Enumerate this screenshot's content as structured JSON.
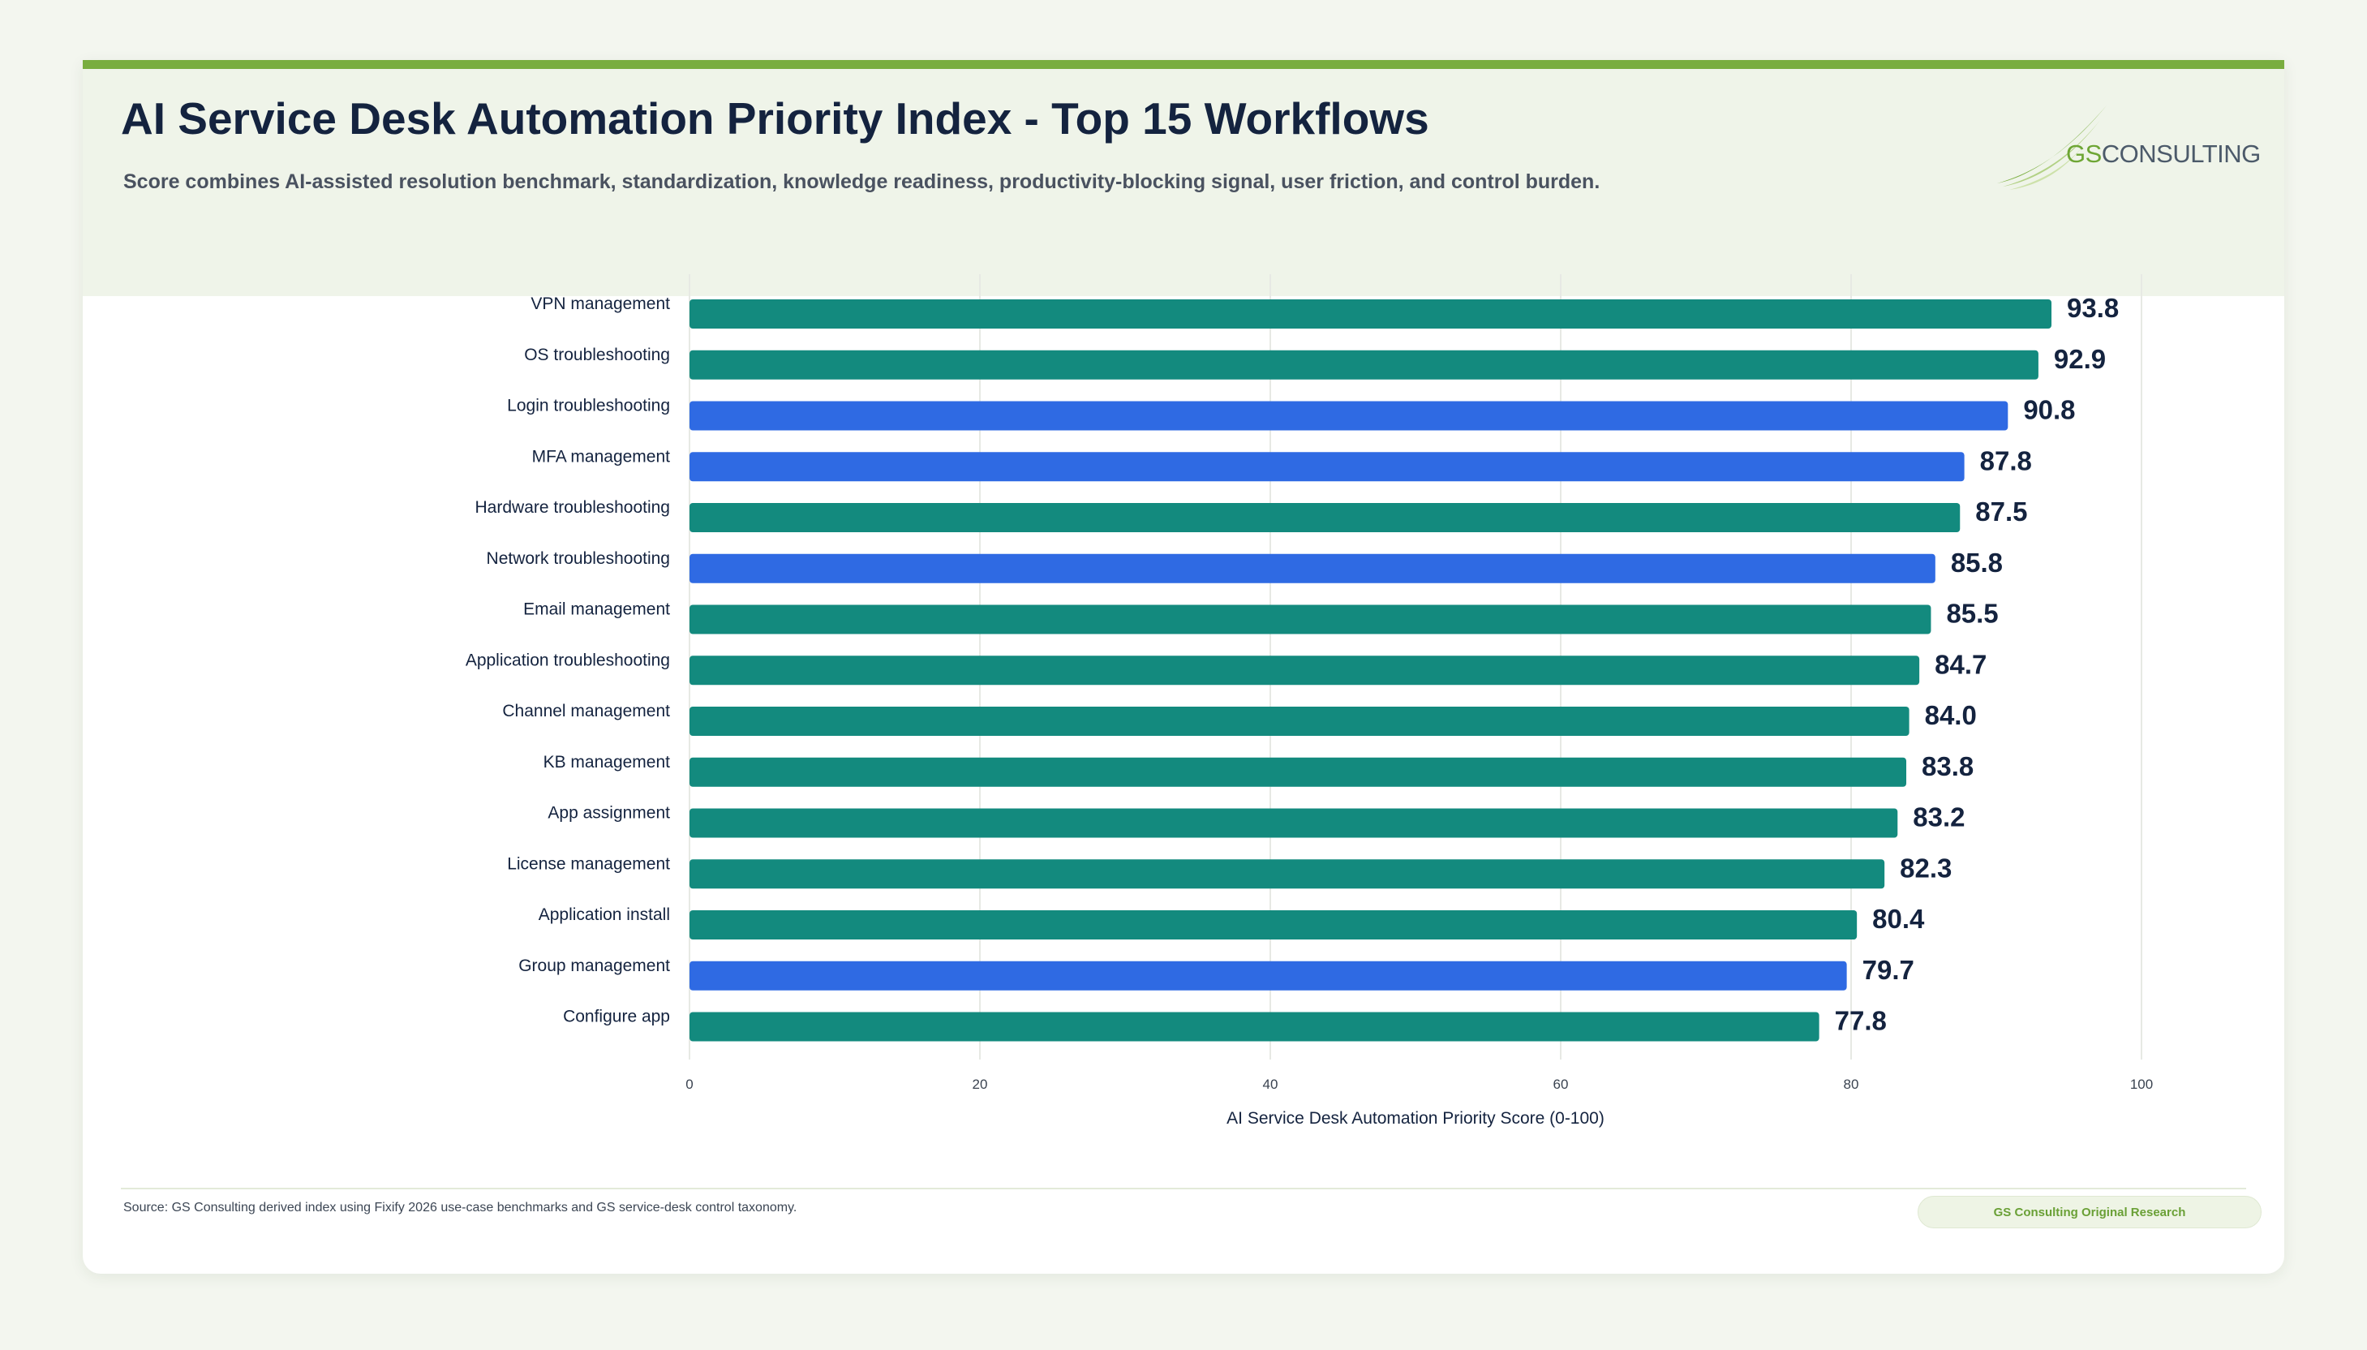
{
  "header": {
    "title": "AI Service Desk Automation Priority Index - Top 15 Workflows",
    "subtitle": "Score combines AI-assisted resolution benchmark, standardization, knowledge readiness, productivity-blocking signal, user friction, and control burden."
  },
  "logo": {
    "prefix": "GS",
    "rest": "CONSULTING",
    "icon": "swoosh-logo-icon"
  },
  "colors": {
    "accent_bar": "#79ad3f",
    "teal": "#138a7e",
    "blue": "#2f6ae3",
    "label": "#14233f"
  },
  "chart_data": {
    "type": "bar",
    "orientation": "horizontal",
    "categories": [
      "VPN management",
      "OS troubleshooting",
      "Login troubleshooting",
      "MFA management",
      "Hardware troubleshooting",
      "Network troubleshooting",
      "Email management",
      "Application troubleshooting",
      "Channel management",
      "KB management",
      "App assignment",
      "License management",
      "Application install",
      "Group management",
      "Configure app"
    ],
    "values": [
      93.8,
      92.9,
      90.8,
      87.8,
      87.5,
      85.8,
      85.5,
      84.7,
      84.0,
      83.8,
      83.2,
      82.3,
      80.4,
      79.7,
      77.8
    ],
    "value_labels": [
      "93.8",
      "92.9",
      "90.8",
      "87.8",
      "87.5",
      "85.8",
      "85.5",
      "84.7",
      "84.0",
      "83.8",
      "83.2",
      "82.3",
      "80.4",
      "79.7",
      "77.8"
    ],
    "bar_colors": [
      "teal",
      "teal",
      "blue",
      "blue",
      "teal",
      "blue",
      "teal",
      "teal",
      "teal",
      "teal",
      "teal",
      "teal",
      "teal",
      "blue",
      "teal"
    ],
    "xlabel": "AI Service Desk Automation Priority Score (0-100)",
    "xlim": [
      0,
      100
    ],
    "xticks": [
      0,
      20,
      40,
      60,
      80,
      100
    ],
    "grid": true,
    "legend": "none"
  },
  "footer": {
    "source": "Source: GS Consulting derived index using Fixify 2026 use-case benchmarks and GS service-desk control taxonomy.",
    "badge": "GS Consulting Original Research"
  }
}
